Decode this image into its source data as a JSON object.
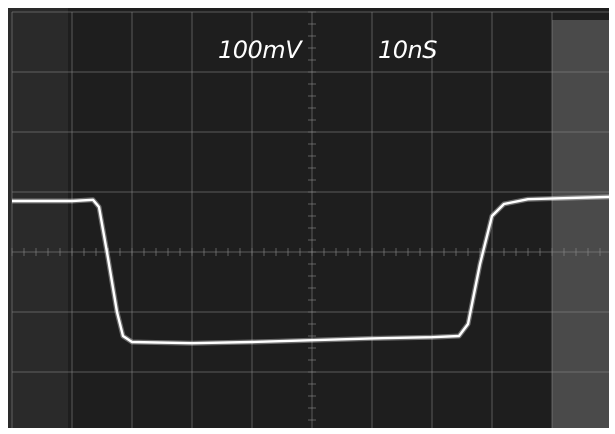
{
  "chart_data": {
    "type": "line",
    "grid": true,
    "divisions": {
      "x": 10,
      "y": 8
    },
    "scale": {
      "vertical": "100mV",
      "horizontal": "10nS"
    },
    "xlim": [
      0,
      10
    ],
    "ylim": [
      0,
      8
    ],
    "series": [
      {
        "color": "#ffffff",
        "points": [
          [
            0.0,
            3.15
          ],
          [
            1.0,
            3.15
          ],
          [
            1.35,
            3.13
          ],
          [
            1.45,
            3.25
          ],
          [
            1.6,
            4.1
          ],
          [
            1.75,
            5.0
          ],
          [
            1.85,
            5.4
          ],
          [
            2.0,
            5.5
          ],
          [
            3.0,
            5.52
          ],
          [
            4.0,
            5.5
          ],
          [
            5.0,
            5.47
          ],
          [
            6.0,
            5.44
          ],
          [
            7.0,
            5.42
          ],
          [
            7.45,
            5.4
          ],
          [
            7.6,
            5.2
          ],
          [
            7.8,
            4.2
          ],
          [
            8.0,
            3.4
          ],
          [
            8.2,
            3.2
          ],
          [
            8.6,
            3.12
          ],
          [
            10.0,
            3.08
          ]
        ]
      }
    ]
  },
  "colors": {
    "screen_background": "#1e1e1e",
    "graticule": "#8c8c8c",
    "trace": "#ffffff"
  }
}
